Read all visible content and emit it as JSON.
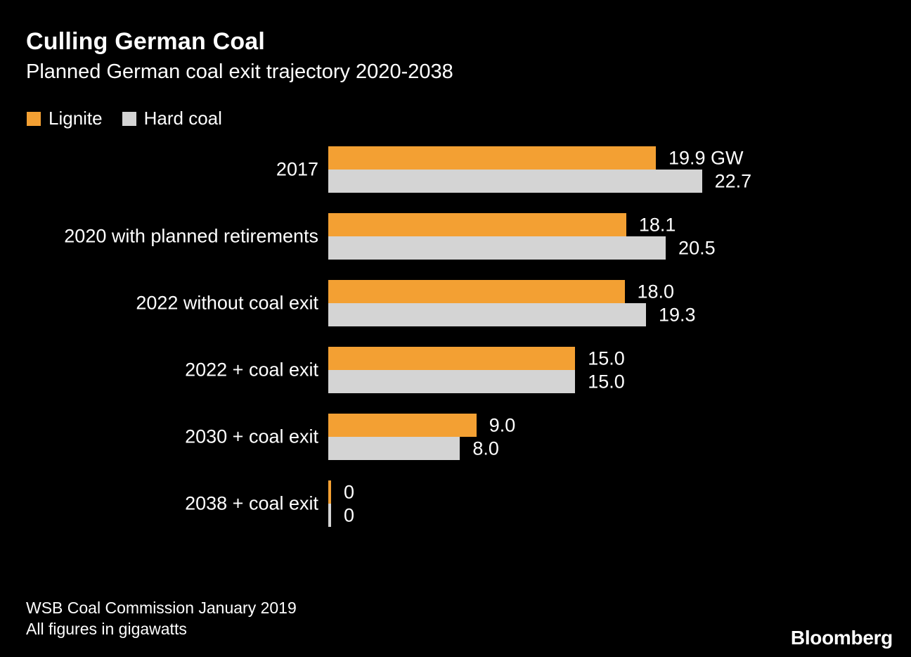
{
  "header": {
    "title": "Culling German Coal",
    "subtitle": "Planned German coal exit trajectory 2020-2038"
  },
  "legend": {
    "items": [
      {
        "label": "Lignite",
        "color": "#F3A033"
      },
      {
        "label": "Hard coal",
        "color": "#D4D4D4"
      }
    ]
  },
  "chart_data": {
    "type": "bar",
    "orientation": "horizontal",
    "title": "Culling German Coal",
    "subtitle": "Planned German coal exit trajectory 2020-2038",
    "unit": "gigawatts",
    "xlim": [
      0,
      22.7
    ],
    "grid": false,
    "legend_position": "top-left",
    "categories": [
      "2017",
      "2020 with planned retirements",
      "2022 without coal exit",
      "2022 + coal exit",
      "2030 + coal exit",
      "2038 + coal exit"
    ],
    "series": [
      {
        "name": "Lignite",
        "color": "#F3A033",
        "values": [
          19.9,
          18.1,
          18.0,
          15.0,
          9.0,
          0
        ]
      },
      {
        "name": "Hard coal",
        "color": "#D4D4D4",
        "values": [
          22.7,
          20.5,
          19.3,
          15.0,
          8.0,
          0
        ]
      }
    ],
    "value_labels": {
      "lignite": [
        "19.9 GW",
        "18.1",
        "18.0",
        "15.0",
        "9.0",
        "0"
      ],
      "hard_coal": [
        "22.7",
        "20.5",
        "19.3",
        "15.0",
        "8.0",
        "0"
      ]
    }
  },
  "footer": {
    "source_line1": "WSB Coal Commission January 2019",
    "source_line2": "All figures in gigawatts",
    "brand": "Bloomberg"
  },
  "colors": {
    "background": "#000000",
    "text": "#FFFFFF",
    "lignite": "#F3A033",
    "hard_coal": "#D4D4D4"
  }
}
